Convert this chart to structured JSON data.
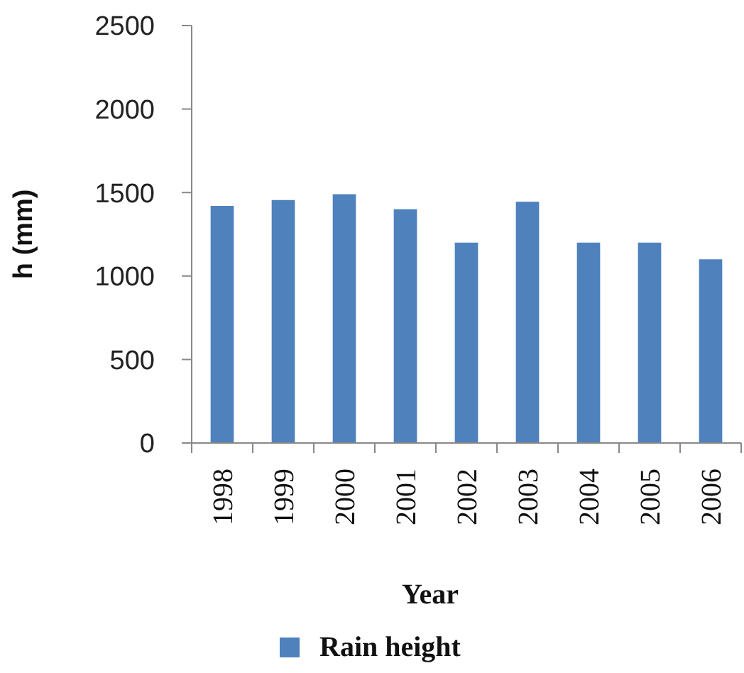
{
  "chart_data": {
    "type": "bar",
    "xlabel": "Year",
    "ylabel": "h (mm)",
    "categories": [
      "1998",
      "1999",
      "2000",
      "2001",
      "2002",
      "2003",
      "2004",
      "2005",
      "2006"
    ],
    "series": [
      {
        "name": "Rain height",
        "color": "#4f81bd",
        "values": [
          1420,
          1455,
          1490,
          1400,
          1200,
          1445,
          1200,
          1200,
          1100
        ]
      }
    ],
    "ylim": [
      0,
      2500
    ],
    "yticks": [
      0,
      500,
      1000,
      1500,
      2000,
      2500
    ],
    "legend": "bottom"
  }
}
